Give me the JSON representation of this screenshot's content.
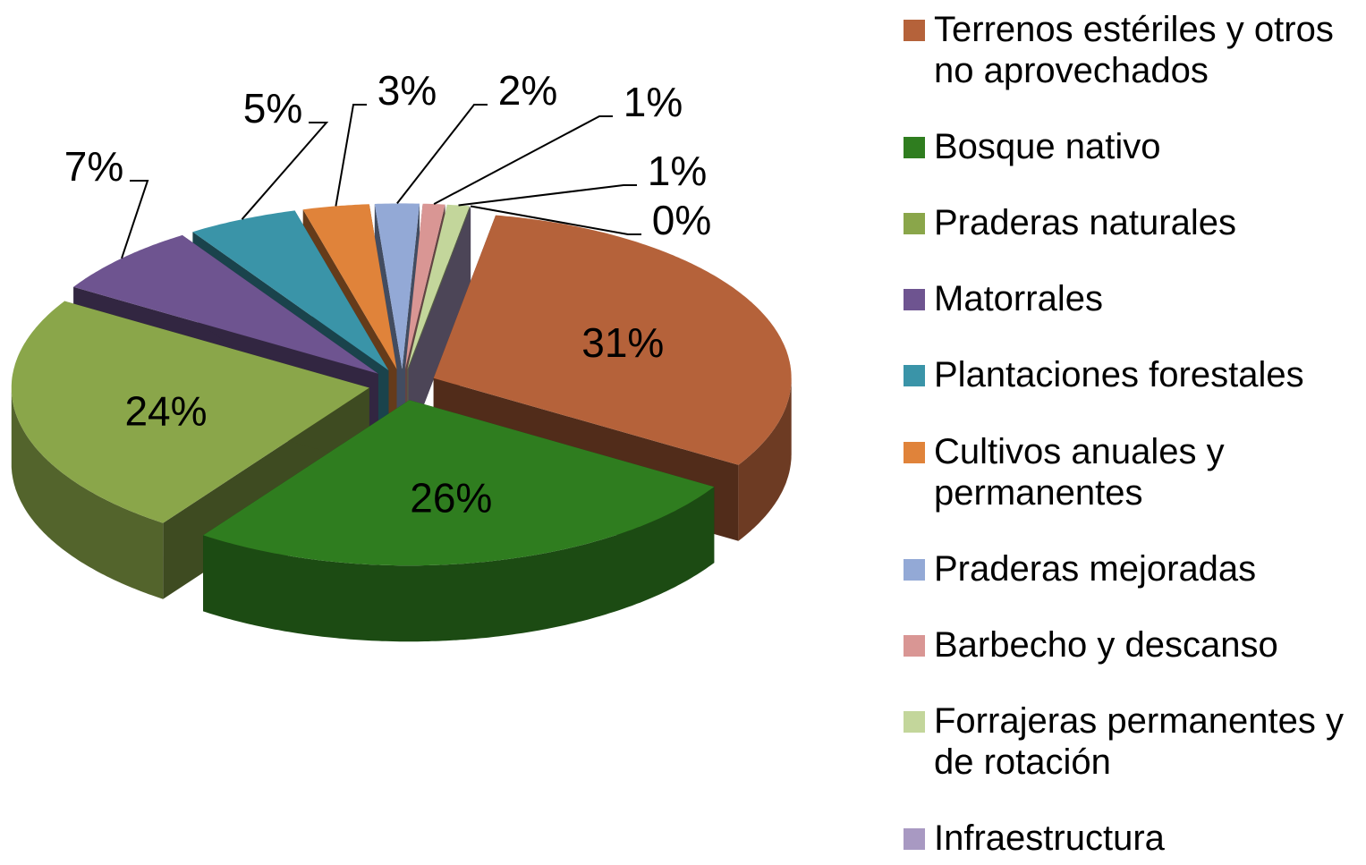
{
  "chart_data": {
    "type": "pie",
    "categories": [
      "Terrenos estériles y otros no aprovechados",
      "Bosque nativo",
      "Praderas naturales",
      "Matorrales",
      "Plantaciones forestales",
      "Cultivos anuales y permanentes",
      "Praderas mejoradas",
      "Barbecho y descanso",
      "Forrajeras permanentes y de rotación",
      "Infraestructura"
    ],
    "values": [
      31,
      26,
      24,
      7,
      5,
      3,
      2,
      1,
      1,
      0
    ],
    "value_labels": [
      "31%",
      "26%",
      "24%",
      "7%",
      "5%",
      "3%",
      "2%",
      "1%",
      "1%",
      "0%"
    ],
    "colors": [
      "#b5623a",
      "#2f7d1f",
      "#8aa64a",
      "#6e5490",
      "#3a94a8",
      "#e0833a",
      "#93a9d6",
      "#d99694",
      "#c3d69b",
      "#a899c2"
    ],
    "legend": "right"
  }
}
